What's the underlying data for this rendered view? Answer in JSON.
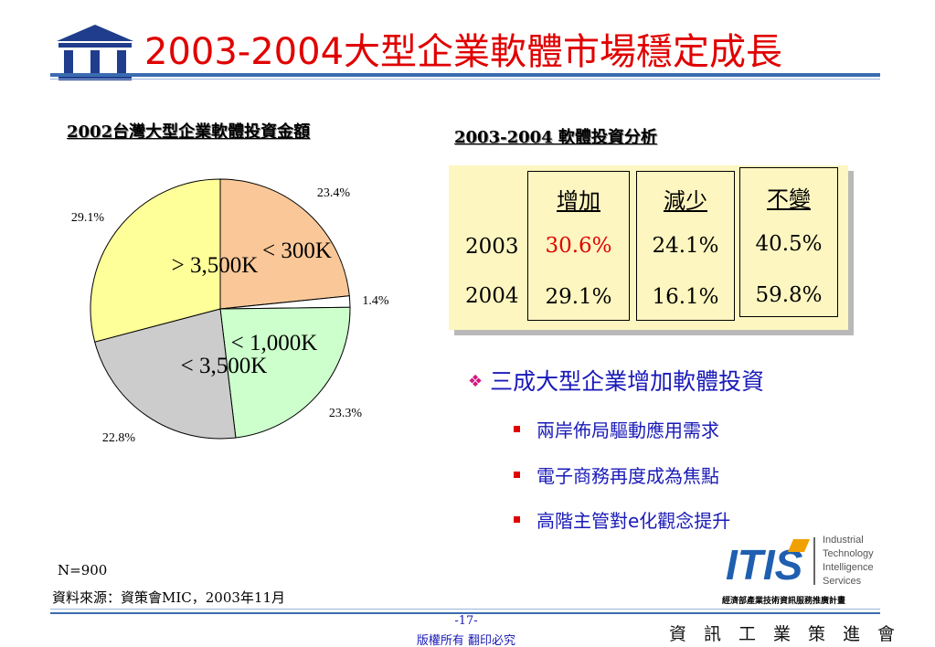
{
  "header": {
    "title": "2003-2004大型企業軟體市場穩定成長"
  },
  "left_section": {
    "subtitle": "2002台灣大型企業軟體投資金額"
  },
  "right_section": {
    "subtitle": "2003-2004 軟體投資分析"
  },
  "chart_data": {
    "type": "pie",
    "title": "2002台灣大型企業軟體投資金額",
    "slices": [
      {
        "label": "< 300K",
        "value": 23.4,
        "percent_label": "23.4%",
        "color": "#fac898"
      },
      {
        "label": "",
        "value": 1.4,
        "percent_label": "1.4%",
        "color": "#ffffff"
      },
      {
        "label": "< 1,000K",
        "value": 23.3,
        "percent_label": "23.3%",
        "color": "#ccffcc"
      },
      {
        "label": "< 3,500K",
        "value": 22.8,
        "percent_label": "22.8%",
        "color": "#cccccc"
      },
      {
        "label": "> 3,500K",
        "value": 29.1,
        "percent_label": "29.1%",
        "color": "#ffff99"
      }
    ]
  },
  "analysis_table": {
    "columns": [
      "增加",
      "減少",
      "不變"
    ],
    "rows": [
      {
        "year": "2003",
        "values": [
          "30.6%",
          "24.1%",
          "40.5%"
        ]
      },
      {
        "year": "2004",
        "values": [
          "29.1%",
          "16.1%",
          "59.8%"
        ]
      }
    ],
    "highlight_color": "#e00000"
  },
  "bullets": {
    "main": "三成大型企業增加軟體投資",
    "marker": "❖",
    "items": [
      "兩岸佈局驅動應用需求",
      "電子商務再度成為焦點",
      "高階主管對e化觀念提升"
    ]
  },
  "notes": {
    "sample": "N=900",
    "source": "資料來源：資策會MIC，2003年11月"
  },
  "footer": {
    "page": "-17-",
    "copyright": "版權所有  翻印必究",
    "org": "資訊工業策進會"
  },
  "itis_logo": {
    "mark": "ITIS",
    "lines": [
      "Industrial",
      "Technology",
      "Intelligence",
      "Services"
    ],
    "caption": "經濟部產業技術資訊服務推廣計畫"
  },
  "colors": {
    "title": "#e00000",
    "accent_blue": "#1a1ab8",
    "rule_blue": "#3a6bb0",
    "table_bg": "#fdf6c0"
  }
}
